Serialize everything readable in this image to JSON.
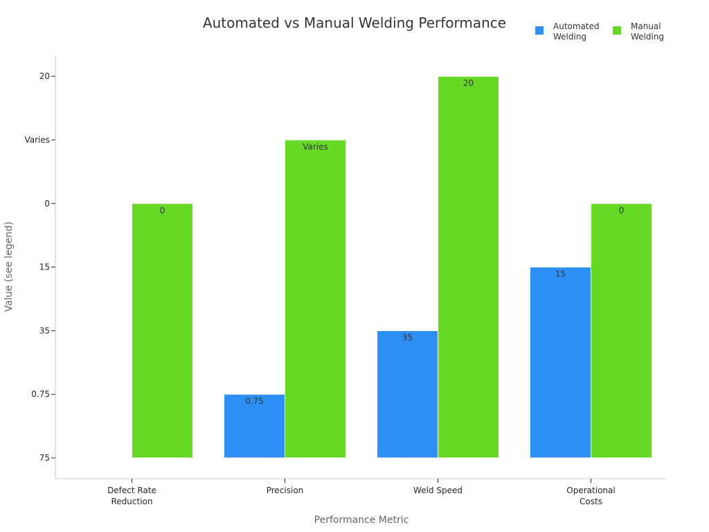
{
  "chart_data": {
    "type": "bar",
    "title": "Automated vs Manual Welding Performance",
    "xlabel": "Performance Metric",
    "ylabel": "Value (see legend)",
    "categories": [
      [
        "Defect Rate",
        "Reduction"
      ],
      [
        "Precision"
      ],
      [
        "Weld Speed"
      ],
      [
        "Operational",
        "Costs"
      ]
    ],
    "y_ticks": [
      "75",
      "0.75",
      "35",
      "15",
      "0",
      "Varies",
      "20"
    ],
    "series": [
      {
        "name": "Automated Welding",
        "legend_lines": [
          "Automated",
          "Welding"
        ],
        "color": "#2d8ff5",
        "values": [
          null,
          "0.75",
          "35",
          "15"
        ]
      },
      {
        "name": "Manual Welding",
        "legend_lines": [
          "Manual",
          "Welding"
        ],
        "color": "#66d926",
        "values": [
          "0",
          "Varies",
          "20",
          "0"
        ]
      }
    ],
    "grid": false,
    "legend_position": "top-right"
  }
}
